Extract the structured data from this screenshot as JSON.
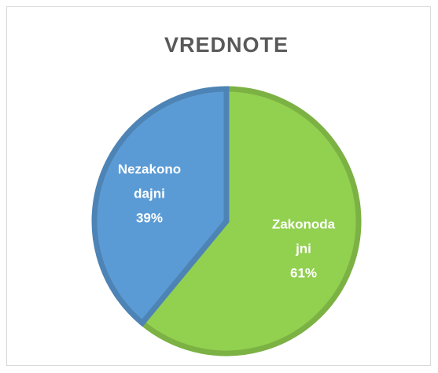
{
  "chart_data": {
    "type": "pie",
    "title": "VREDNOTE",
    "categories": [
      "Zakonodajni",
      "Nezakonodajni"
    ],
    "values": [
      61,
      39
    ],
    "value_labels": [
      "61%",
      "39%"
    ],
    "colors": [
      "#92d050",
      "#5b9bd5"
    ]
  }
}
